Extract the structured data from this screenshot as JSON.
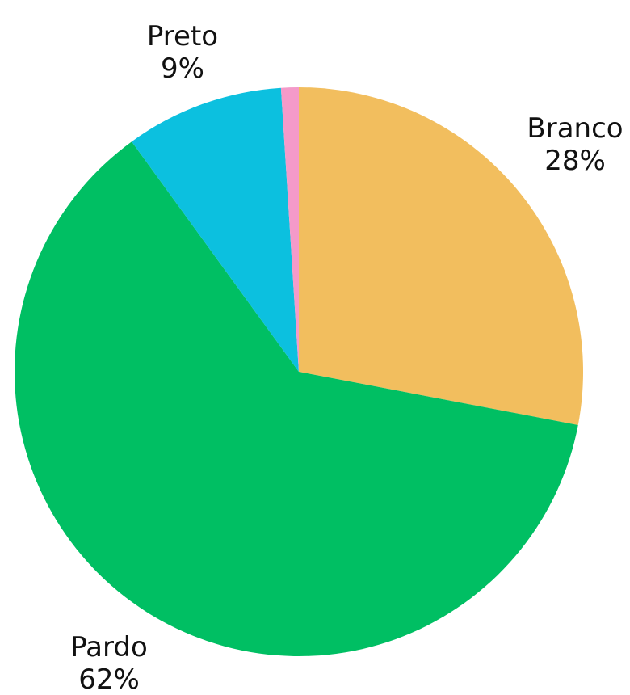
{
  "chart_data": {
    "type": "pie",
    "title": "",
    "start": "12 o'clock",
    "direction": "clockwise",
    "slices": [
      {
        "name": "Branco",
        "value": 28,
        "display": "28%",
        "color": "#F2BE5E",
        "labelled": true
      },
      {
        "name": "Pardo",
        "value": 62,
        "display": "62%",
        "color": "#00BF63",
        "labelled": true
      },
      {
        "name": "Preto",
        "value": 9,
        "display": "9%",
        "color": "#0CC0DF",
        "labelled": true
      },
      {
        "name": "",
        "value": 1,
        "display": "",
        "color": "#F49AC9",
        "labelled": false
      }
    ]
  }
}
